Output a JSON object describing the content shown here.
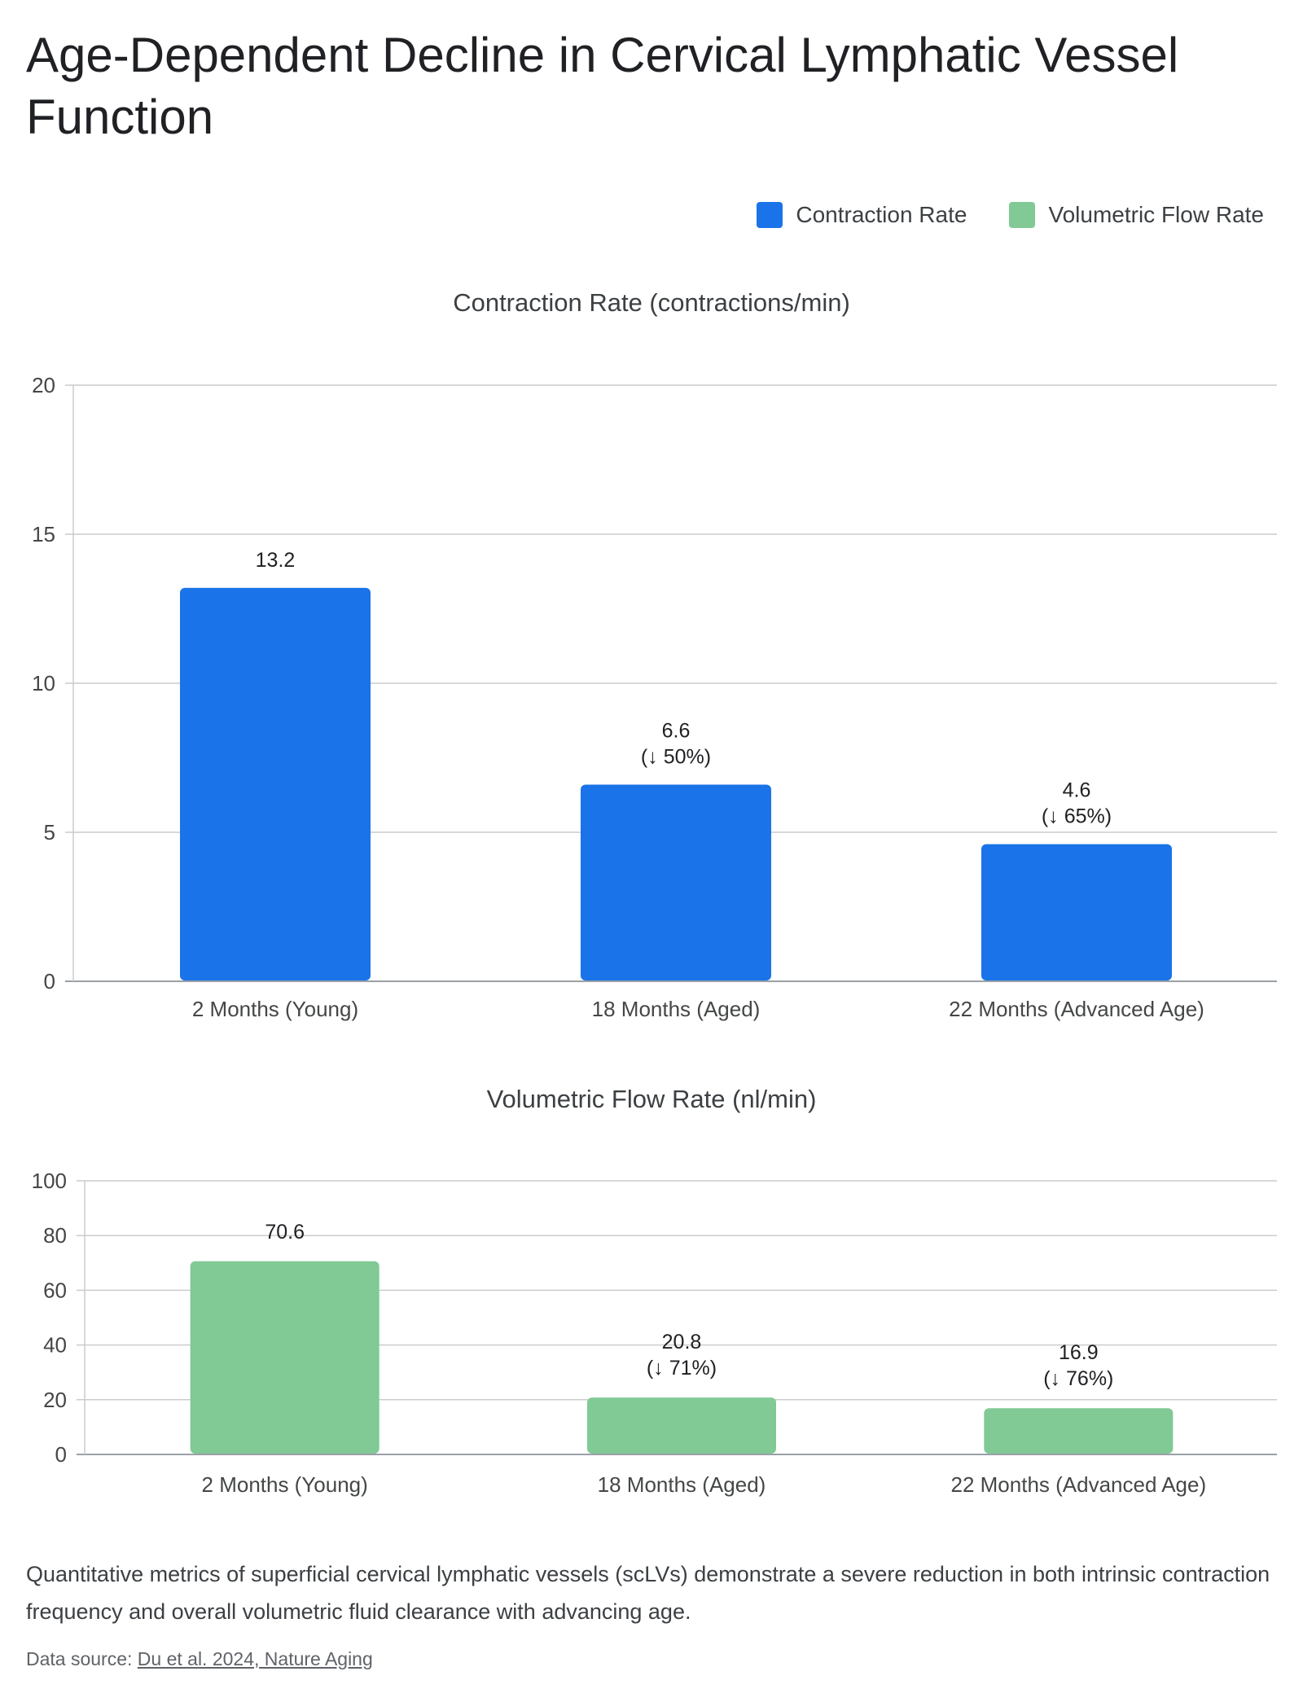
{
  "title": "Age-Dependent Decline in Cervical Lymphatic Vessel Function",
  "legend": [
    {
      "label": "Contraction Rate",
      "color": "#1a73e8"
    },
    {
      "label": "Volumetric Flow Rate",
      "color": "#81c995"
    }
  ],
  "chart_data": [
    {
      "type": "bar",
      "title": "Contraction Rate (contractions/min)",
      "categories": [
        "2 Months (Young)",
        "18 Months (Aged)",
        "22 Months (Advanced Age)"
      ],
      "series": [
        {
          "name": "Contraction Rate",
          "values": [
            13.2,
            6.6,
            4.6
          ],
          "color": "#1a73e8"
        }
      ],
      "data_labels": [
        [
          "13.2"
        ],
        [
          "6.6",
          "(↓ 50%)"
        ],
        [
          "4.6",
          "(↓ 65%)"
        ]
      ],
      "yticks": [
        "0",
        "5",
        "10",
        "15",
        "20"
      ],
      "ylim": [
        0,
        20
      ],
      "grid": true
    },
    {
      "type": "bar",
      "title": "Volumetric Flow Rate (nl/min)",
      "categories": [
        "2 Months (Young)",
        "18 Months (Aged)",
        "22 Months (Advanced Age)"
      ],
      "series": [
        {
          "name": "Volumetric Flow Rate",
          "values": [
            70.6,
            20.8,
            16.9
          ],
          "color": "#81c995"
        }
      ],
      "data_labels": [
        [
          "70.6"
        ],
        [
          "20.8",
          "(↓ 71%)"
        ],
        [
          "16.9",
          "(↓ 76%)"
        ]
      ],
      "yticks": [
        "0",
        "20",
        "40",
        "60",
        "80",
        "100"
      ],
      "ylim": [
        0,
        100
      ],
      "grid": true
    }
  ],
  "description": "Quantitative metrics of superficial cervical lymphatic vessels (scLVs) demonstrate a severe reduction in both intrinsic contraction frequency and overall volumetric fluid clearance with advancing age.",
  "source": {
    "prefix": "Data source: ",
    "link_text": "Du et al. 2024, Nature Aging"
  }
}
